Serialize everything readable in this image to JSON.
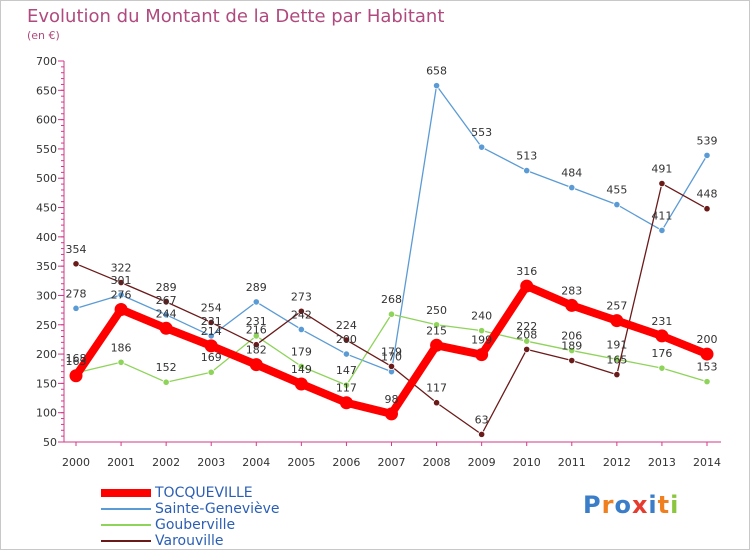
{
  "header": {
    "title": "Evolution du Montant de la Dette par Habitant",
    "unit": "(en €)"
  },
  "logo": {
    "text": "Proxiti",
    "colors": [
      "#3a7dc9",
      "#f07f1f",
      "#3a7dc9",
      "#e63c2f",
      "#3a7dc9",
      "#f07f1f",
      "#8cc63f"
    ]
  },
  "chart_data": {
    "type": "line",
    "title": "Evolution du Montant de la Dette par Habitant",
    "ylabel": "(en €)",
    "xlabel": "",
    "ylim": [
      50,
      700
    ],
    "yticks": [
      50,
      100,
      150,
      200,
      250,
      300,
      350,
      400,
      450,
      500,
      550,
      600,
      650,
      700
    ],
    "grid": false,
    "legend_position": "bottom-left",
    "categories": [
      "2000",
      "2001",
      "2002",
      "2003",
      "2004",
      "2005",
      "2006",
      "2007",
      "2008",
      "2009",
      "2010",
      "2011",
      "2012",
      "2013",
      "2014"
    ],
    "series": [
      {
        "name": "TOCQUEVILLE",
        "color": "#ff0000",
        "values": [
          163,
          276,
          244,
          214,
          182,
          149,
          117,
          98,
          215,
          199,
          316,
          283,
          257,
          231,
          200
        ]
      },
      {
        "name": "Sainte-Geneviève",
        "color": "#5b9bd5",
        "values": [
          278,
          301,
          267,
          231,
          289,
          242,
          200,
          170,
          658,
          553,
          513,
          484,
          455,
          411,
          539
        ]
      },
      {
        "name": "Gouberville",
        "color": "#8ed35a",
        "values": [
          168,
          186,
          152,
          169,
          231,
          179,
          147,
          268,
          250,
          240,
          222,
          206,
          191,
          176,
          153
        ]
      },
      {
        "name": "Varouville",
        "color": "#6b1a1a",
        "values": [
          354,
          322,
          289,
          254,
          216,
          273,
          224,
          179,
          117,
          63,
          208,
          189,
          165,
          491,
          448
        ]
      }
    ]
  }
}
